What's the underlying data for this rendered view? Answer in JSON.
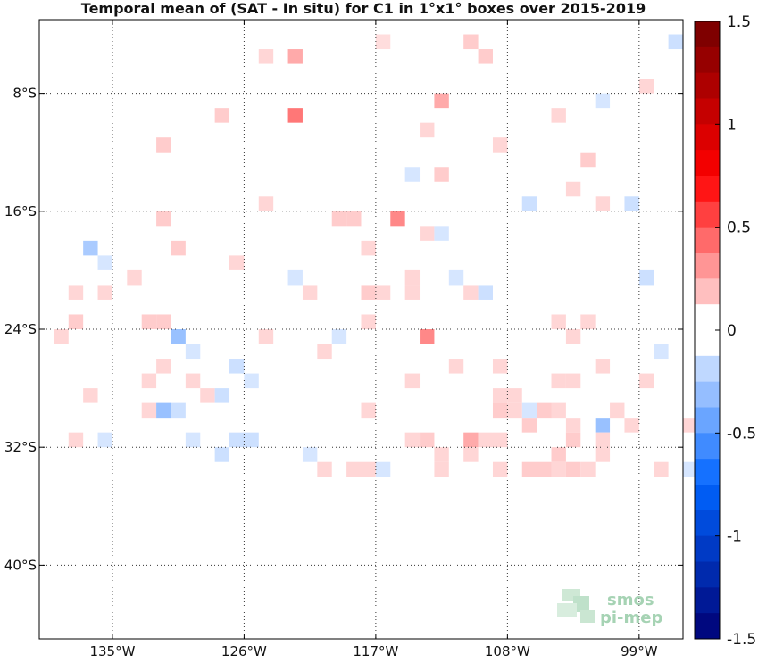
{
  "chart_data": {
    "type": "heatmap",
    "title": "Temporal mean of (SAT - In situ) for C1 in 1°x1° boxes over 2015-2019",
    "x_range": [
      -140,
      -96
    ],
    "y_range": [
      -45,
      -3
    ],
    "x_ticks": [
      {
        "value": -135,
        "label": "135°W"
      },
      {
        "value": -126,
        "label": "126°W"
      },
      {
        "value": -117,
        "label": "117°W"
      },
      {
        "value": -108,
        "label": "108°W"
      },
      {
        "value": -99,
        "label": "99°W"
      }
    ],
    "y_ticks": [
      {
        "value": -8,
        "label": "8°S"
      },
      {
        "value": -16,
        "label": "16°S"
      },
      {
        "value": -24,
        "label": "24°S"
      },
      {
        "value": -32,
        "label": "32°S"
      },
      {
        "value": -40,
        "label": "40°S"
      }
    ],
    "colorbar": {
      "range": [
        -1.5,
        1.5
      ],
      "ticks": [
        {
          "value": 1.5,
          "label": "1.5"
        },
        {
          "value": 1,
          "label": "1"
        },
        {
          "value": 0.5,
          "label": "0.5"
        },
        {
          "value": 0,
          "label": "0"
        },
        {
          "value": -0.5,
          "label": "-0.5"
        },
        {
          "value": -1,
          "label": "-1"
        },
        {
          "value": -1.5,
          "label": "-1.5"
        }
      ]
    },
    "cells": [
      [
        -116.5,
        -4.5,
        0.1
      ],
      [
        -110.5,
        -4.5,
        0.15
      ],
      [
        -96.5,
        -4.5,
        -0.15
      ],
      [
        -124.5,
        -5.5,
        0.12
      ],
      [
        -122.5,
        -5.5,
        0.25
      ],
      [
        -109.5,
        -5.5,
        0.15
      ],
      [
        -98.5,
        -7.5,
        0.12
      ],
      [
        -101.5,
        -8.5,
        -0.12
      ],
      [
        -112.5,
        -8.5,
        0.25
      ],
      [
        -127.5,
        -9.5,
        0.15
      ],
      [
        -122.5,
        -9.5,
        0.4
      ],
      [
        -104.5,
        -9.5,
        0.12
      ],
      [
        -113.5,
        -10.5,
        0.12
      ],
      [
        -108.5,
        -11.5,
        0.12
      ],
      [
        -131.5,
        -11.5,
        0.15
      ],
      [
        -102.5,
        -12.5,
        0.15
      ],
      [
        -114.5,
        -13.5,
        -0.12
      ],
      [
        -112.5,
        -13.5,
        0.15
      ],
      [
        -103.5,
        -14.5,
        0.12
      ],
      [
        -106.5,
        -15.5,
        -0.15
      ],
      [
        -101.5,
        -15.5,
        0.12
      ],
      [
        -99.5,
        -15.5,
        -0.15
      ],
      [
        -115.5,
        -16.5,
        0.35
      ],
      [
        -131.5,
        -16.5,
        0.15
      ],
      [
        -124.5,
        -15.5,
        0.12
      ],
      [
        -119.5,
        -16.5,
        0.15
      ],
      [
        -118.5,
        -16.5,
        0.15
      ],
      [
        -113.5,
        -17.5,
        0.12
      ],
      [
        -112.5,
        -17.5,
        -0.12
      ],
      [
        -136.5,
        -18.5,
        -0.25
      ],
      [
        -130.5,
        -18.5,
        0.15
      ],
      [
        -117.5,
        -18.5,
        0.12
      ],
      [
        -135.5,
        -19.5,
        -0.12
      ],
      [
        -126.5,
        -19.5,
        0.12
      ],
      [
        -122.5,
        -20.5,
        -0.12
      ],
      [
        -114.5,
        -20.5,
        0.12
      ],
      [
        -137.5,
        -21.5,
        0.12
      ],
      [
        -135.5,
        -21.5,
        0.12
      ],
      [
        -121.5,
        -21.5,
        0.12
      ],
      [
        -117.5,
        -21.5,
        0.15
      ],
      [
        -116.5,
        -21.5,
        0.12
      ],
      [
        -114.5,
        -21.5,
        0.12
      ],
      [
        -110.5,
        -21.5,
        0.12
      ],
      [
        -109.5,
        -21.5,
        -0.15
      ],
      [
        -111.5,
        -20.5,
        -0.12
      ],
      [
        -98.5,
        -20.5,
        -0.15
      ],
      [
        -133.5,
        -20.5,
        0.12
      ],
      [
        -137.5,
        -23.5,
        0.15
      ],
      [
        -132.5,
        -23.5,
        0.15
      ],
      [
        -131.5,
        -23.5,
        0.15
      ],
      [
        -117.5,
        -23.5,
        0.12
      ],
      [
        -104.5,
        -23.5,
        0.12
      ],
      [
        -102.5,
        -23.5,
        0.12
      ],
      [
        -138.5,
        -24.5,
        0.12
      ],
      [
        -130.5,
        -24.5,
        -0.3
      ],
      [
        -124.5,
        -24.5,
        0.12
      ],
      [
        -119.5,
        -24.5,
        -0.12
      ],
      [
        -113.5,
        -24.5,
        0.35
      ],
      [
        -103.5,
        -24.5,
        0.12
      ],
      [
        -129.5,
        -25.5,
        -0.12
      ],
      [
        -120.5,
        -25.5,
        0.12
      ],
      [
        -97.5,
        -25.5,
        -0.12
      ],
      [
        -131.5,
        -26.5,
        0.12
      ],
      [
        -126.5,
        -26.5,
        -0.15
      ],
      [
        -111.5,
        -26.5,
        0.12
      ],
      [
        -108.5,
        -26.5,
        0.12
      ],
      [
        -101.5,
        -26.5,
        0.12
      ],
      [
        -132.5,
        -27.5,
        0.12
      ],
      [
        -125.5,
        -27.5,
        -0.12
      ],
      [
        -114.5,
        -27.5,
        0.12
      ],
      [
        -104.5,
        -27.5,
        0.12
      ],
      [
        -103.5,
        -27.5,
        0.12
      ],
      [
        -98.5,
        -27.5,
        0.12
      ],
      [
        -136.5,
        -28.5,
        0.12
      ],
      [
        -128.5,
        -28.5,
        0.12
      ],
      [
        -127.5,
        -28.5,
        -0.15
      ],
      [
        -129.5,
        -27.5,
        0.12
      ],
      [
        -108.5,
        -28.5,
        0.12
      ],
      [
        -107.5,
        -28.5,
        0.12
      ],
      [
        -132.5,
        -29.5,
        0.12
      ],
      [
        -131.5,
        -29.5,
        -0.3
      ],
      [
        -130.5,
        -29.5,
        -0.15
      ],
      [
        -117.5,
        -29.5,
        0.12
      ],
      [
        -108.5,
        -29.5,
        0.15
      ],
      [
        -106.5,
        -29.5,
        -0.12
      ],
      [
        -107.5,
        -29.5,
        0.12
      ],
      [
        -104.5,
        -29.5,
        0.12
      ],
      [
        -105.5,
        -29.5,
        0.15
      ],
      [
        -100.5,
        -29.5,
        0.12
      ],
      [
        -106.5,
        -30.5,
        0.15
      ],
      [
        -103.5,
        -30.5,
        0.12
      ],
      [
        -99.5,
        -30.5,
        0.12
      ],
      [
        -101.5,
        -30.5,
        -0.3
      ],
      [
        -95.5,
        -30.5,
        0.12
      ],
      [
        -137.5,
        -31.5,
        0.12
      ],
      [
        -135.5,
        -31.5,
        -0.12
      ],
      [
        -129.5,
        -31.5,
        -0.12
      ],
      [
        -126.5,
        -31.5,
        -0.15
      ],
      [
        -125.5,
        -31.5,
        -0.15
      ],
      [
        -114.5,
        -31.5,
        0.12
      ],
      [
        -113.5,
        -31.5,
        0.15
      ],
      [
        -110.5,
        -31.5,
        0.25
      ],
      [
        -108.5,
        -31.5,
        0.12
      ],
      [
        -109.5,
        -31.5,
        0.12
      ],
      [
        -103.5,
        -31.5,
        0.15
      ],
      [
        -101.5,
        -31.5,
        0.12
      ],
      [
        -104.5,
        -32.5,
        0.15
      ],
      [
        -101.5,
        -32.5,
        0.12
      ],
      [
        -127.5,
        -32.5,
        -0.15
      ],
      [
        -121.5,
        -32.5,
        -0.12
      ],
      [
        -112.5,
        -32.5,
        0.12
      ],
      [
        -110.5,
        -32.5,
        0.12
      ],
      [
        -120.5,
        -33.5,
        0.12
      ],
      [
        -118.5,
        -33.5,
        0.12
      ],
      [
        -117.5,
        -33.5,
        0.12
      ],
      [
        -116.5,
        -33.5,
        -0.12
      ],
      [
        -112.5,
        -33.5,
        0.12
      ],
      [
        -108.5,
        -33.5,
        0.12
      ],
      [
        -106.5,
        -33.5,
        0.15
      ],
      [
        -105.5,
        -33.5,
        0.15
      ],
      [
        -104.5,
        -33.5,
        0.12
      ],
      [
        -103.5,
        -33.5,
        0.15
      ],
      [
        -102.5,
        -33.5,
        0.12
      ],
      [
        -97.5,
        -33.5,
        0.12
      ],
      [
        -95.5,
        -33.5,
        -0.12
      ]
    ]
  }
}
